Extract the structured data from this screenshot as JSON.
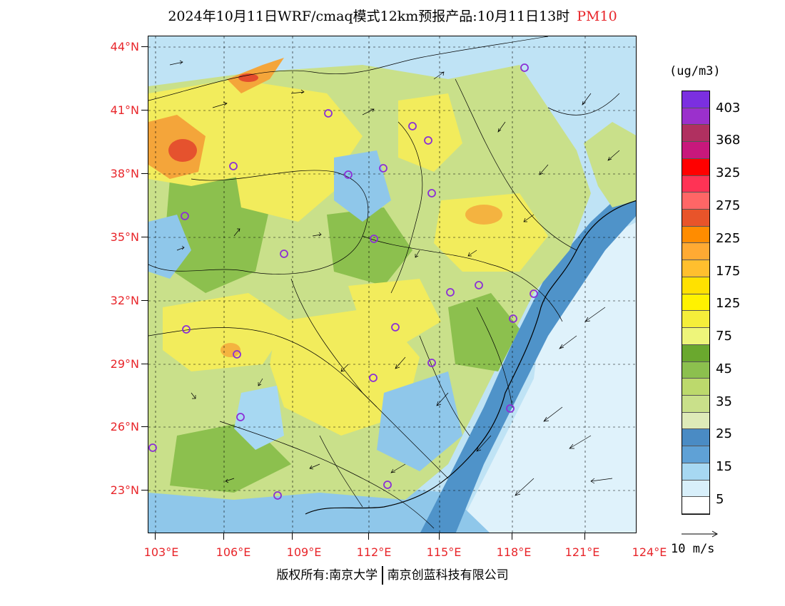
{
  "header": {
    "title": "2024年10月11日WRF/cmaq模式12km预报产品:10月11日13时",
    "pollutant": "PM10"
  },
  "map": {
    "lat_labels": [
      "44°N",
      "41°N",
      "38°N",
      "35°N",
      "32°N",
      "29°N",
      "26°N",
      "23°N"
    ],
    "lon_labels": [
      "103°E",
      "106°E",
      "109°E",
      "112°E",
      "115°E",
      "118°E",
      "121°E",
      "124°E"
    ],
    "colors": {
      "ocean": "#bfe3f5",
      "low": "#8fc7ea",
      "mid_blue": "#4f93c9",
      "light_green": "#c9e08a",
      "green": "#8cc04e",
      "yellow": "#f2ec5c",
      "orange": "#f4a53a",
      "red": "#e0372b",
      "boundary": "#000000",
      "station": "#8b2fd6"
    }
  },
  "legend": {
    "unit": "(ug/m3)",
    "labels": [
      "403",
      "368",
      "325",
      "275",
      "225",
      "175",
      "125",
      "75",
      "45",
      "35",
      "25",
      "15",
      "5"
    ],
    "colors": [
      "#7b2fe0",
      "#9b30cc",
      "#b03060",
      "#c8187c",
      "#ff0000",
      "#ff3355",
      "#ff6666",
      "#e8542a",
      "#ff8c00",
      "#ffaa33",
      "#ffbf2e",
      "#ffe100",
      "#fff200",
      "#f5ee3a",
      "#eef57a",
      "#6aa82e",
      "#8cc04e",
      "#bcd96c",
      "#c9e08a",
      "#deeab8",
      "#4a8bc4",
      "#5fa1d6",
      "#a7d8f2",
      "#d8effa",
      "#ffffff"
    ]
  },
  "wind_reference": "10 m/s",
  "footer": {
    "left": "版权所有:南京大学",
    "right": "南京创蓝科技有限公司"
  }
}
